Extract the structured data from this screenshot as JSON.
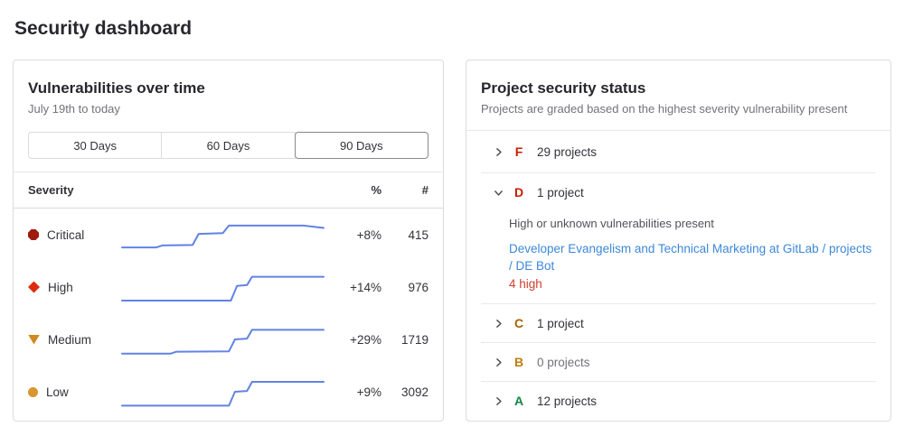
{
  "page": {
    "title": "Security dashboard"
  },
  "colors": {
    "spark_line": "#6282e3",
    "link_blue": "#3c88d8"
  },
  "vuln_panel": {
    "title": "Vulnerabilities over time",
    "subtitle": "July 19th to today",
    "range_buttons": [
      {
        "label": "30 Days",
        "selected": false
      },
      {
        "label": "60 Days",
        "selected": false
      },
      {
        "label": "90 Days",
        "selected": true
      }
    ],
    "table": {
      "headers": {
        "severity": "Severity",
        "percent": "%",
        "count": "#"
      },
      "rows": [
        {
          "severity": "Critical",
          "icon": "severity-critical-icon",
          "icon_color": "#9e1b0d",
          "percent": "+8%",
          "count": "415",
          "spark": [
            [
              0,
              0.82
            ],
            [
              0.17,
              0.82
            ],
            [
              0.2,
              0.77
            ],
            [
              0.35,
              0.76
            ],
            [
              0.38,
              0.48
            ],
            [
              0.5,
              0.46
            ],
            [
              0.53,
              0.27
            ],
            [
              0.9,
              0.27
            ],
            [
              1,
              0.33
            ]
          ]
        },
        {
          "severity": "High",
          "icon": "severity-high-icon",
          "icon_color": "#dd2b0e",
          "percent": "+14%",
          "count": "976",
          "spark": [
            [
              0,
              0.84
            ],
            [
              0.54,
              0.84
            ],
            [
              0.57,
              0.47
            ],
            [
              0.62,
              0.45
            ],
            [
              0.645,
              0.24
            ],
            [
              1,
              0.24
            ]
          ]
        },
        {
          "severity": "Medium",
          "icon": "severity-medium-icon",
          "icon_color": "#d0891f",
          "percent": "+29%",
          "count": "1719",
          "spark": [
            [
              0,
              0.86
            ],
            [
              0.24,
              0.86
            ],
            [
              0.27,
              0.81
            ],
            [
              0.53,
              0.8
            ],
            [
              0.56,
              0.5
            ],
            [
              0.62,
              0.48
            ],
            [
              0.645,
              0.26
            ],
            [
              1,
              0.26
            ]
          ]
        },
        {
          "severity": "Low",
          "icon": "severity-low-icon",
          "icon_color": "#d99530",
          "percent": "+9%",
          "count": "3092",
          "spark": [
            [
              0,
              0.85
            ],
            [
              0.53,
              0.85
            ],
            [
              0.56,
              0.5
            ],
            [
              0.62,
              0.48
            ],
            [
              0.645,
              0.25
            ],
            [
              1,
              0.25
            ]
          ]
        }
      ]
    }
  },
  "status_panel": {
    "title": "Project security status",
    "subtitle": "Projects are graded based on the highest severity vulnerability present",
    "grades": [
      {
        "letter": "F",
        "color": "#c91c00",
        "count_label": "29 projects",
        "expanded": false
      },
      {
        "letter": "D",
        "color": "#c91c00",
        "count_label": "1 project",
        "expanded": true,
        "description": "High or unknown vulnerabilities present",
        "project_link": "Developer Evangelism and Technical Marketing at GitLab / projects / DE Bot",
        "finding": "4 high",
        "finding_color": "#cf3f2a"
      },
      {
        "letter": "C",
        "color": "#ab6100",
        "count_label": "1 project",
        "expanded": false
      },
      {
        "letter": "B",
        "color": "#c17d10",
        "count_label": "0 projects",
        "expanded": false,
        "muted": true
      },
      {
        "letter": "A",
        "color": "#108548",
        "count_label": "12 projects",
        "expanded": false
      }
    ]
  }
}
